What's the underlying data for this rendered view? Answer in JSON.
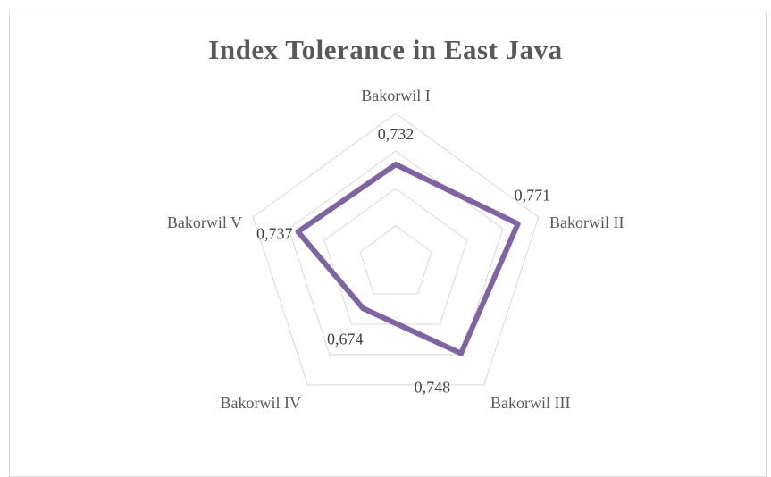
{
  "chart_data": {
    "type": "radar",
    "title": "Index Tolerance in East Java",
    "categories": [
      "Bakorwil I",
      "Bakorwil II",
      "Bakorwil III",
      "Bakorwil IV",
      "Bakorwil V"
    ],
    "series": [
      {
        "values": [
          0.732,
          0.771,
          0.748,
          0.674,
          0.737
        ],
        "value_labels": [
          "0,732",
          "0,771",
          "0,748",
          "0,674",
          "0,737"
        ],
        "color": "#8064a2"
      }
    ],
    "rlim": [
      0.6,
      0.8
    ],
    "grid": true,
    "legend": "none"
  }
}
